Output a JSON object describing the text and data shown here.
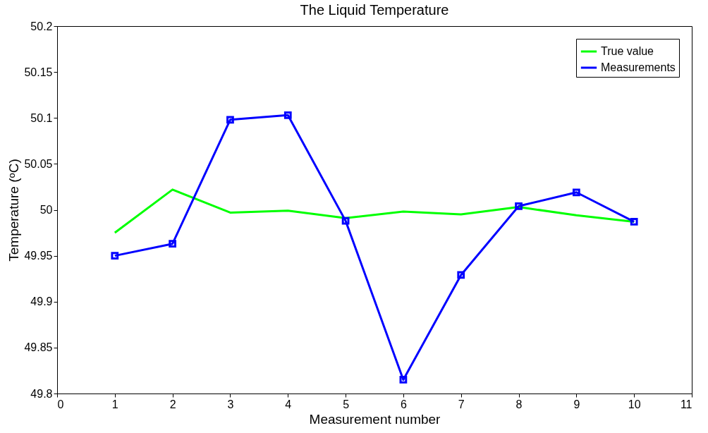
{
  "chart_data": {
    "type": "line",
    "title": "The Liquid  Temperature",
    "xlabel": "Measurement number",
    "ylabel": "Temperature (ᵒC)",
    "x": [
      1,
      2,
      3,
      4,
      5,
      6,
      7,
      8,
      9,
      10
    ],
    "series": [
      {
        "name": "True value",
        "color": "#00ff00",
        "marker": "none",
        "values": [
          49.975,
          50.022,
          49.997,
          49.999,
          49.991,
          49.998,
          49.995,
          50.003,
          49.994,
          49.987
        ]
      },
      {
        "name": "Measurements",
        "color": "#0000ff",
        "marker": "square",
        "values": [
          49.95,
          49.963,
          50.098,
          50.103,
          49.988,
          49.815,
          49.929,
          50.004,
          50.019,
          49.987
        ]
      }
    ],
    "xlim": [
      0,
      11
    ],
    "xticks": [
      0,
      1,
      2,
      3,
      4,
      5,
      6,
      7,
      8,
      9,
      10,
      11
    ],
    "ylim": [
      49.8,
      50.2
    ],
    "yticks": [
      49.8,
      49.85,
      49.9,
      49.95,
      50,
      50.05,
      50.1,
      50.15,
      50.2
    ],
    "grid": false,
    "legend": "top right",
    "line_style": "solid"
  }
}
